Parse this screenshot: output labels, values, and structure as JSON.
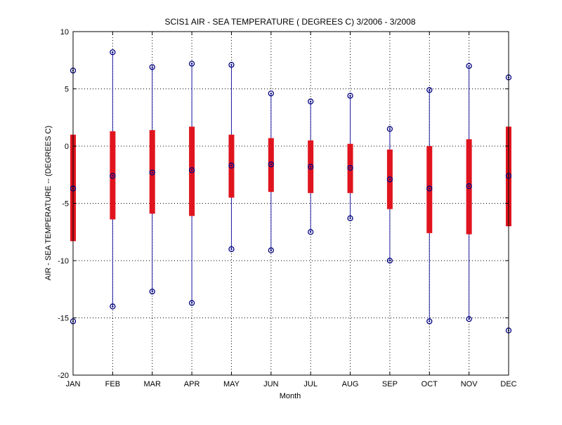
{
  "chart_data": {
    "type": "box",
    "title": "SCIS1  AIR - SEA TEMPERATURE ( DEGREES C) 3/2006 - 3/2008",
    "xlabel": "Month",
    "ylabel": "AIR - SEA TEMPERATURE -- (DEGREES C)",
    "categories": [
      "JAN",
      "FEB",
      "MAR",
      "APR",
      "MAY",
      "JUN",
      "JUL",
      "AUG",
      "SEP",
      "OCT",
      "NOV",
      "DEC"
    ],
    "ylim": [
      -20,
      10
    ],
    "yticks": [
      -20,
      -15,
      -10,
      -5,
      0,
      5,
      10
    ],
    "grid": true,
    "series": [
      {
        "max": [
          6.6,
          8.2,
          6.9,
          7.2,
          7.1,
          4.6,
          3.9,
          4.4,
          1.5,
          4.9,
          7.0,
          6.0
        ],
        "q3": [
          1.0,
          1.3,
          1.4,
          1.7,
          1.0,
          0.7,
          0.5,
          0.2,
          -0.3,
          0.0,
          0.6,
          1.7
        ],
        "median": [
          -3.7,
          -2.6,
          -2.3,
          -2.1,
          -1.7,
          -1.6,
          -1.8,
          -1.9,
          -2.9,
          -3.7,
          -3.5,
          -2.6
        ],
        "q1": [
          -8.3,
          -6.4,
          -5.9,
          -6.1,
          -4.5,
          -4.0,
          -4.1,
          -4.1,
          -5.5,
          -7.6,
          -7.7,
          -7.0
        ],
        "min": [
          -15.3,
          -14.0,
          -12.7,
          -13.7,
          -9.0,
          -9.1,
          -7.5,
          -6.3,
          -10.0,
          -15.3,
          -15.1,
          -16.1
        ]
      }
    ],
    "colors": {
      "whisker": "#1f1fa3",
      "box": "#e0141e",
      "marker": "#000080",
      "grid": "#000000"
    }
  }
}
